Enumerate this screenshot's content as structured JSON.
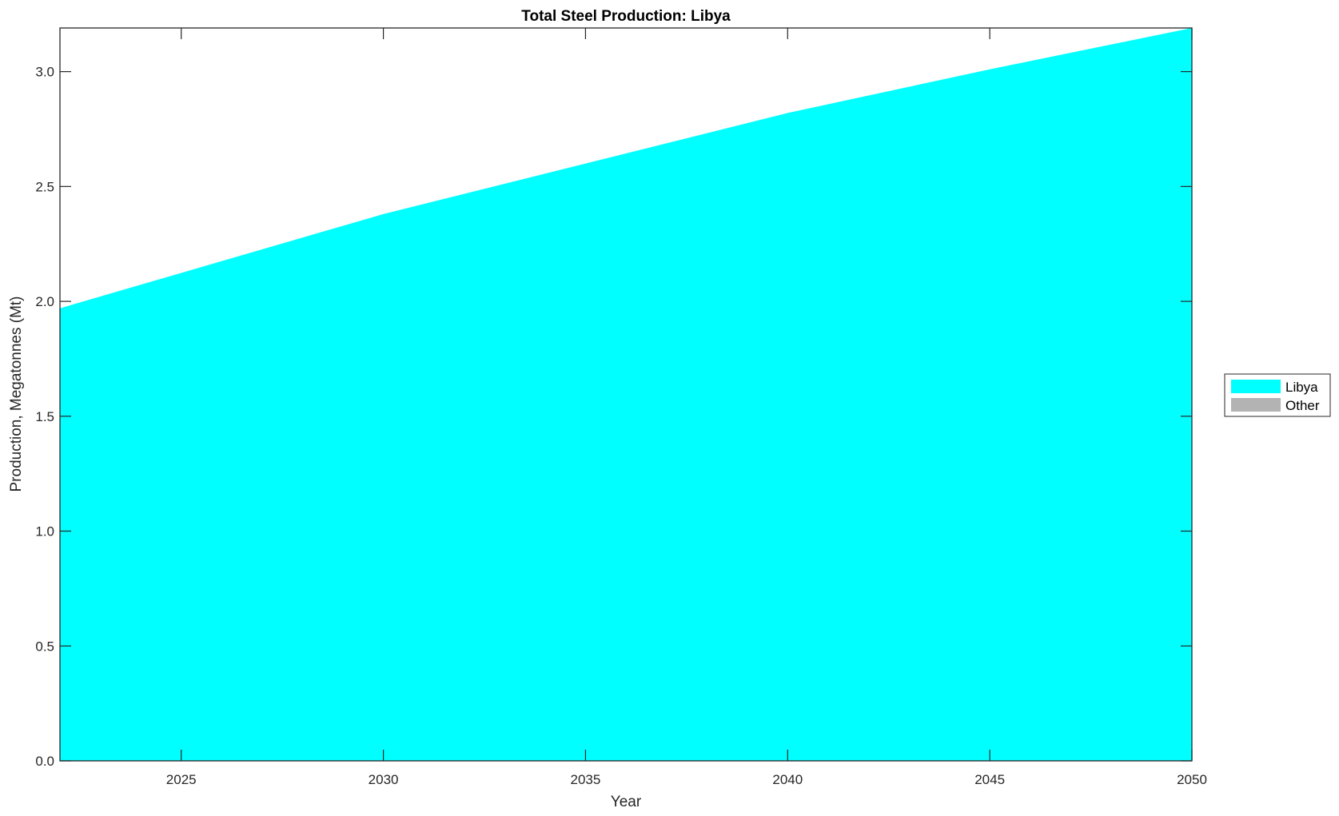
{
  "chart_data": {
    "type": "area",
    "title": "Total Steel Production: Libya",
    "xlabel": "Year",
    "ylabel": "Production, Megatonnes (Mt)",
    "xlim": [
      2022,
      2050
    ],
    "ylim": [
      0,
      3.19
    ],
    "xticks": [
      2025,
      2030,
      2035,
      2040,
      2045,
      2050
    ],
    "xtick_labels": [
      "2025",
      "2030",
      "2035",
      "2040",
      "2045",
      "2050"
    ],
    "yticks": [
      0,
      0.5,
      1.0,
      1.5,
      2.0,
      2.5,
      3.0
    ],
    "ytick_labels": [
      "0.0",
      "0.5",
      "1.0",
      "1.5",
      "2.0",
      "2.5",
      "3.0"
    ],
    "grid": false,
    "legend_position": "right",
    "x": [
      2022,
      2030,
      2040,
      2045,
      2050
    ],
    "series": [
      {
        "name": "Libya",
        "color": "#00FFFF",
        "values": [
          1.97,
          2.38,
          2.82,
          3.01,
          3.19
        ]
      },
      {
        "name": "Other",
        "color": "#B3B3B3",
        "values": [
          0,
          0,
          0,
          0,
          0
        ]
      }
    ]
  }
}
